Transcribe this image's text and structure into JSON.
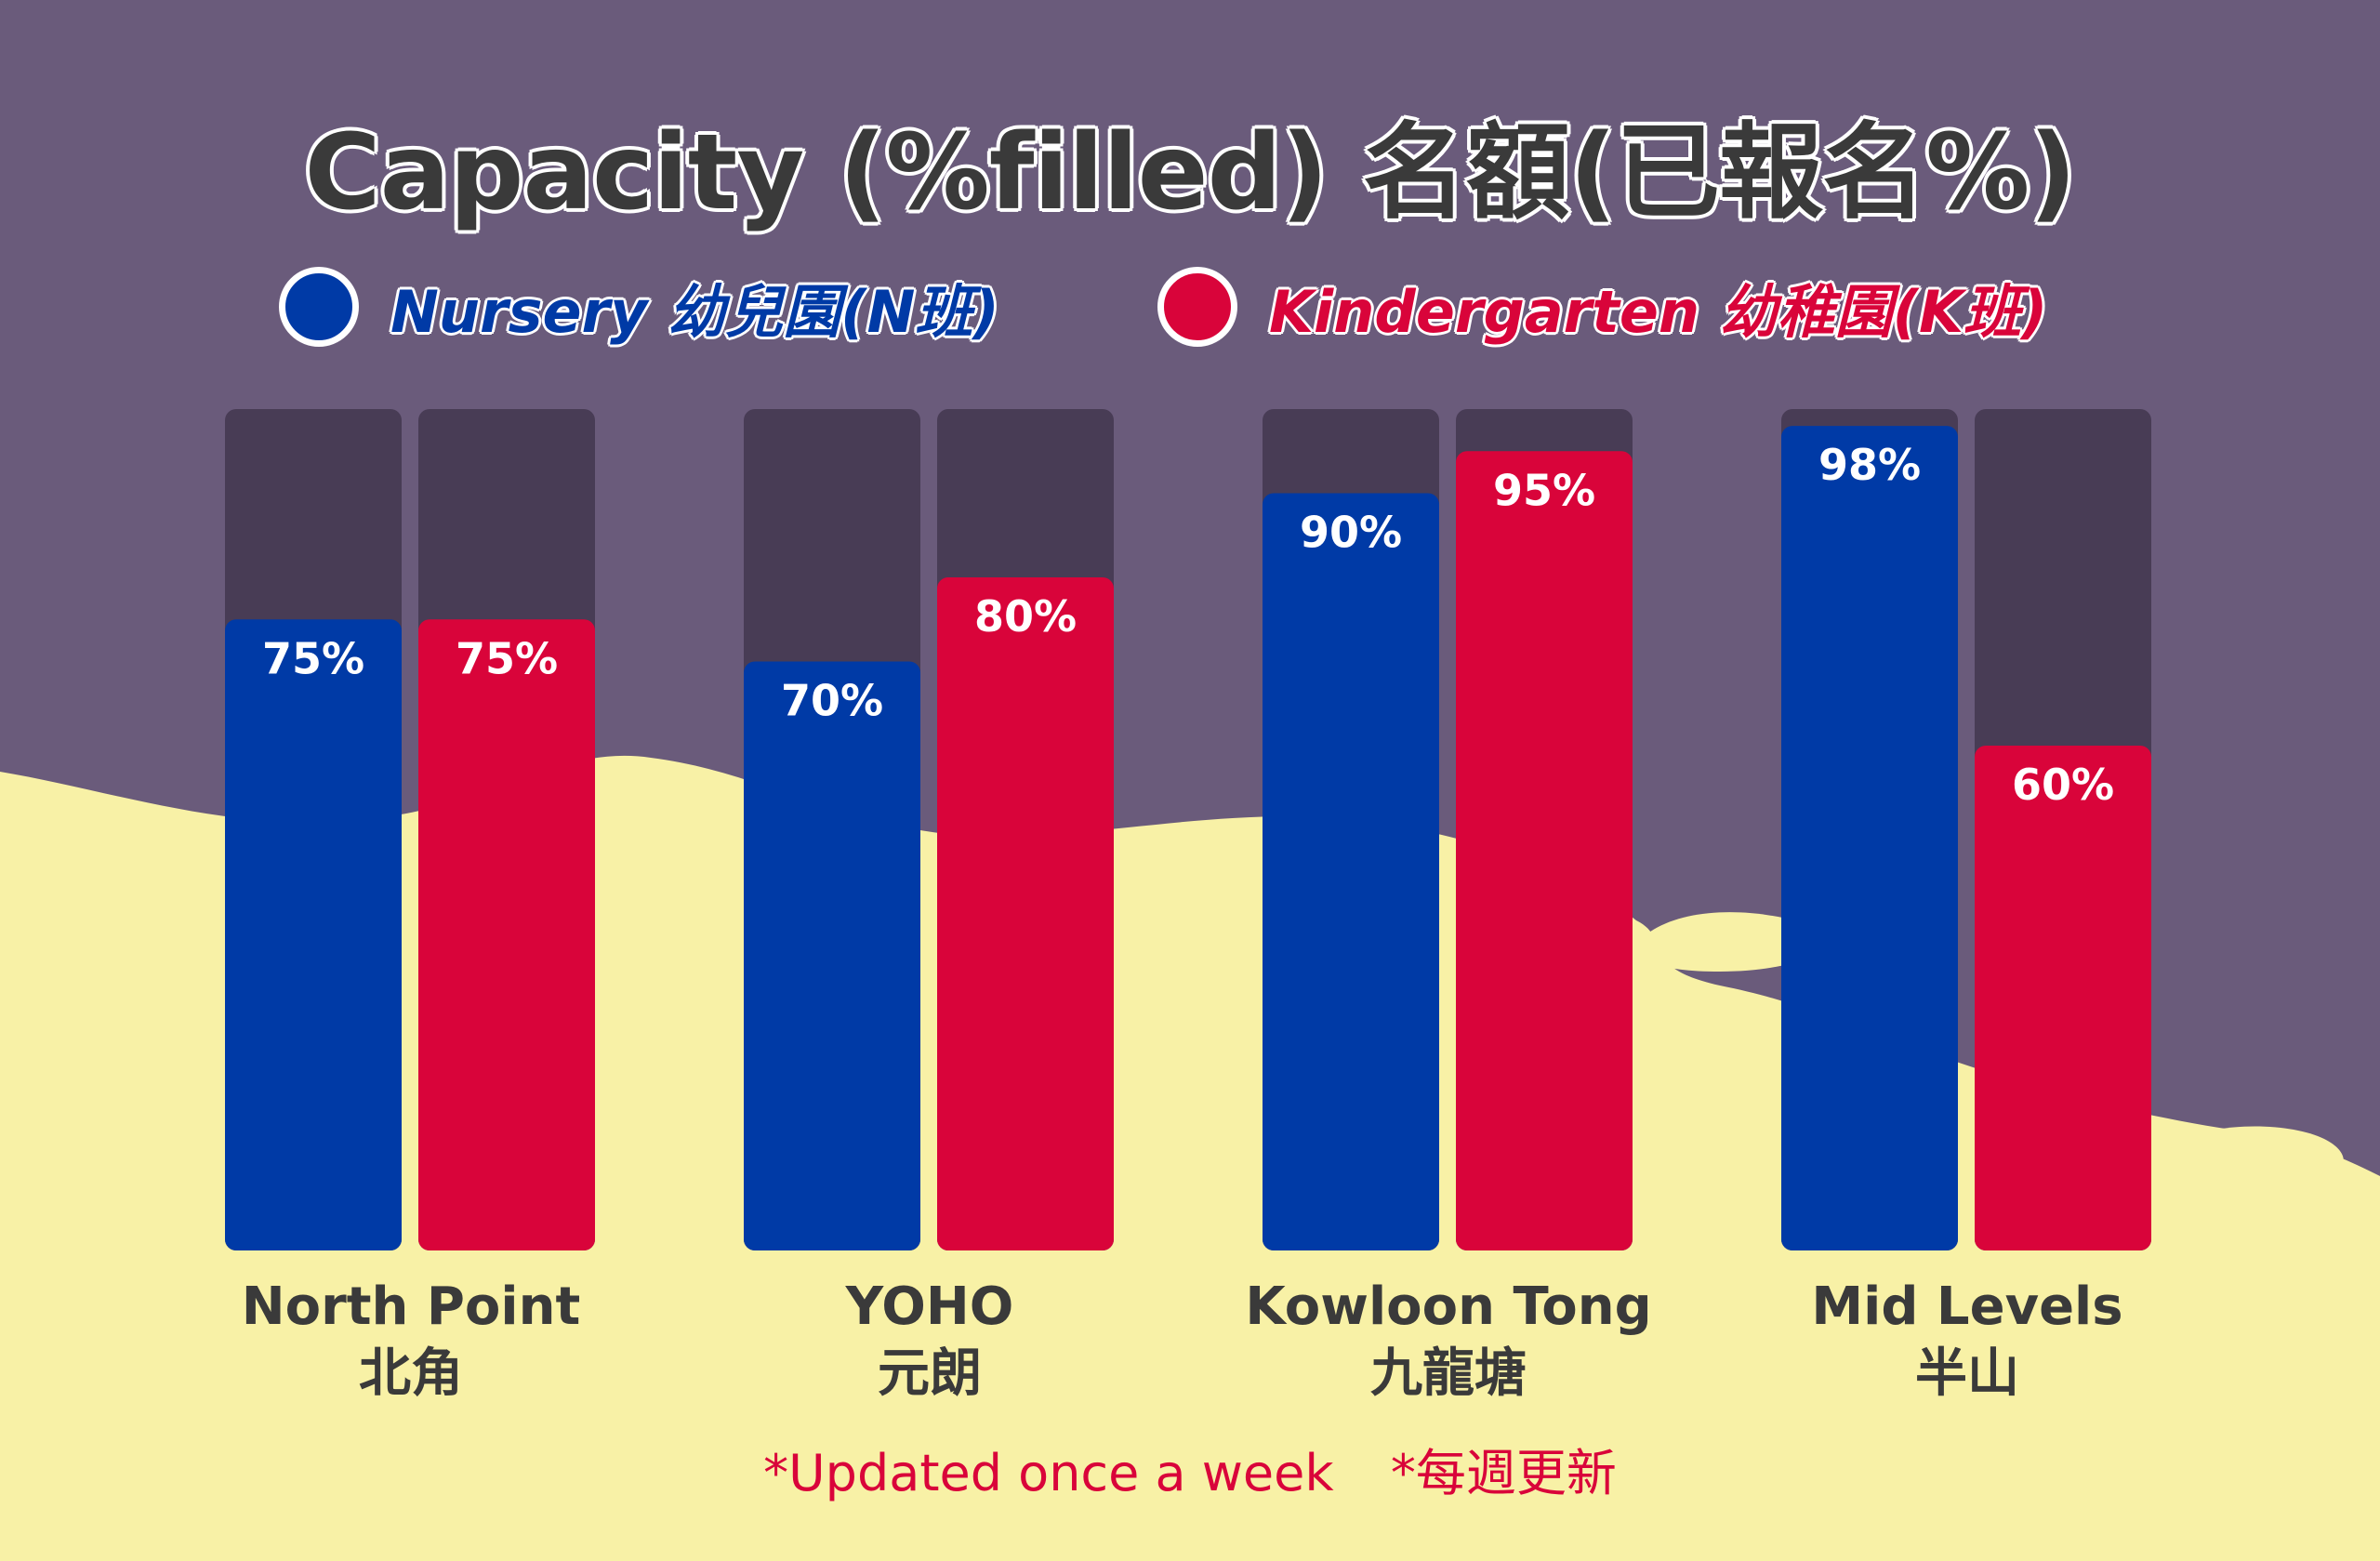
{
  "title": "Capacity (%filled)  名額(已報名%)",
  "legend": [
    {
      "label": "Nursery 幼兒園(N班)",
      "color": "#003aa6"
    },
    {
      "label": "Kindergarten 幼稚園(K班)",
      "color": "#d9043a"
    }
  ],
  "footnote": {
    "en": "*Updated once a week",
    "zh": "*每週更新"
  },
  "colors": {
    "background": "#6a5b7b",
    "track": "#483c55",
    "sand": "#f8f1a6"
  },
  "chart_data": {
    "type": "bar",
    "categories": [
      "North Point\n北角",
      "YOHO\n元朗",
      "Kowloon Tong\n九龍塘",
      "Mid Levels\n半山"
    ],
    "series": [
      {
        "name": "Nursery 幼兒園(N班)",
        "values": [
          75,
          70,
          90,
          98
        ],
        "color": "#003aa6"
      },
      {
        "name": "Kindergarten 幼稚園(K班)",
        "values": [
          75,
          80,
          95,
          60
        ],
        "color": "#d9043a"
      }
    ],
    "data_labels": [
      [
        "75%",
        "70%",
        "90%",
        "98%"
      ],
      [
        "75%",
        "80%",
        "95%",
        "60%"
      ]
    ],
    "ylim": [
      0,
      100
    ],
    "grid": false,
    "legend_position": "top"
  }
}
